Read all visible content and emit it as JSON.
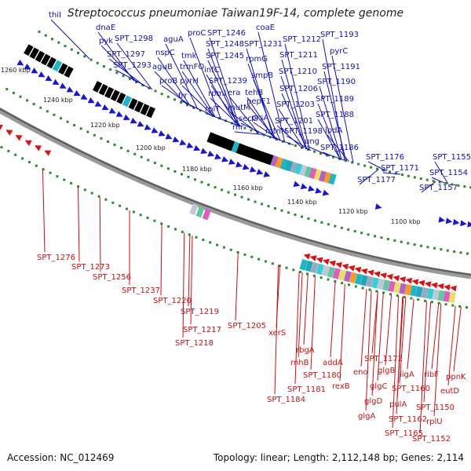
{
  "title": "Streptococcus pneumoniae Taiwan19F-14, complete genome",
  "footer": {
    "accession": "Accession: NC_012469",
    "summary": "Topology: linear; Length: 2,112,148 bp; Genes: 2,114"
  },
  "colors": {
    "forward_labels": "#1010c0",
    "reverse_labels": "#cc1010",
    "tick": "#2e8b2e",
    "backbone": "#888888"
  },
  "ticks": [
    "1260 kbp",
    "1240 kbp",
    "1220 kbp",
    "1200 kbp",
    "1180 kbp",
    "1160 kbp",
    "1140 kbp",
    "1120 kbp",
    "1100 kbp"
  ],
  "forward_genes": [
    "thiI",
    "dnaE",
    "pyk",
    "SPT_1298",
    "SPT_1297",
    "SPT_1293",
    "aguA",
    "nspC",
    "aguB",
    "proB",
    "proC",
    "tmk",
    "trmFO",
    "pyrH",
    "frr",
    "SPT_1246",
    "SPT_1248",
    "SPT_1245",
    "infC",
    "SPT_1239",
    "rpmI",
    "rplT",
    "coaE",
    "SPT_1231",
    "rpmG",
    "smpB",
    "era",
    "tehB",
    "mutM",
    "pepF1",
    "secG",
    "rnr",
    "prsA",
    "mtnN",
    "SPT_1212",
    "SPT_1211",
    "SPT_1210",
    "SPT_1206",
    "SPT_1203",
    "SPT_1201",
    "SPT_1198",
    "ung",
    "SPT_1193",
    "pyrC",
    "SPT_1191",
    "SPT_1190",
    "SPT_1189",
    "SPT_1188",
    "lpdA",
    "SPT_1186",
    "SPT_1176",
    "SPT_1171",
    "SPT_1177",
    "SPT_1155",
    "SPT_1154",
    "SPT_1157"
  ],
  "reverse_genes": [
    "SPT_1276",
    "SPT_1273",
    "SPT_1256",
    "SPT_1237",
    "SPT_1220",
    "SPT_1219",
    "SPT_1217",
    "SPT_1218",
    "SPT_1205",
    "xerS",
    "rbgA",
    "rnhB",
    "SPT_1180",
    "addA",
    "SPT_1181",
    "rexB",
    "SPT_1184",
    "SPT_1172",
    "eno",
    "glgB",
    "glgC",
    "glgD",
    "glgA",
    "SPT_1165",
    "ligA",
    "SPT_1160",
    "pulA",
    "SPT_1162",
    "ribF",
    "SPT_1150",
    "rplU",
    "SPT_1152",
    "ppnK",
    "eutD"
  ]
}
